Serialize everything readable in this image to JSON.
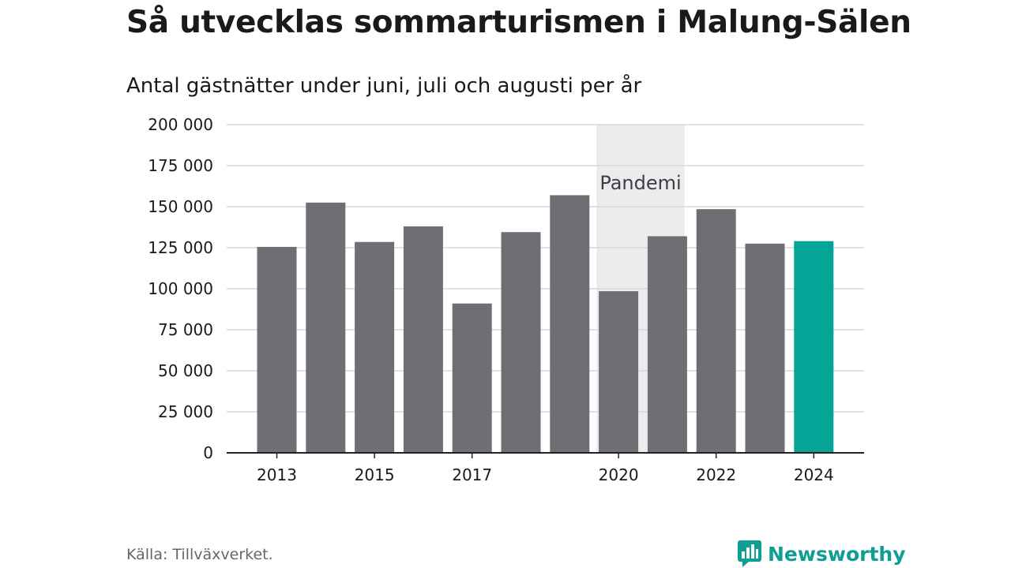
{
  "header": {
    "title": "Så utvecklas sommarturismen i Malung-Sälen",
    "subtitle": "Antal gästnätter under juni, juli och augusti per år"
  },
  "footer": {
    "source": "Källa: Tillväxverket.",
    "brand": "Newsworthy"
  },
  "colors": {
    "bar": "#6f6e74",
    "highlight": "#04a497",
    "shade": "#ececec",
    "grid": "#d9d9d9",
    "axis": "#222222",
    "text": "#1a1a1a",
    "annotation": "#3b3e47",
    "brand": "#0e9f93"
  },
  "chart_data": {
    "type": "bar",
    "title": "Så utvecklas sommarturismen i Malung-Sälen",
    "subtitle": "Antal gästnätter under juni, juli och augusti per år",
    "xlabel": "",
    "ylabel": "",
    "categories": [
      "2013",
      "2014",
      "2015",
      "2016",
      "2017",
      "2018",
      "2019",
      "2020",
      "2021",
      "2022",
      "2023",
      "2024"
    ],
    "values": [
      125500,
      152500,
      128500,
      138000,
      91000,
      134500,
      157000,
      98500,
      132000,
      148500,
      127500,
      129000
    ],
    "highlight_category": "2024",
    "ylim": [
      0,
      200000
    ],
    "yticks": [
      0,
      25000,
      50000,
      75000,
      100000,
      125000,
      150000,
      175000,
      200000
    ],
    "ytick_labels": [
      "0",
      "25 000",
      "50 000",
      "75 000",
      "100 000",
      "125 000",
      "150 000",
      "175 000",
      "200 000"
    ],
    "xtick_labels": [
      "2013",
      "2015",
      "2017",
      "2020",
      "2022",
      "2024"
    ],
    "grid": true,
    "legend": "none",
    "annotations": [
      {
        "label": "Pandemi",
        "from": "2020",
        "to": "2021"
      }
    ]
  }
}
